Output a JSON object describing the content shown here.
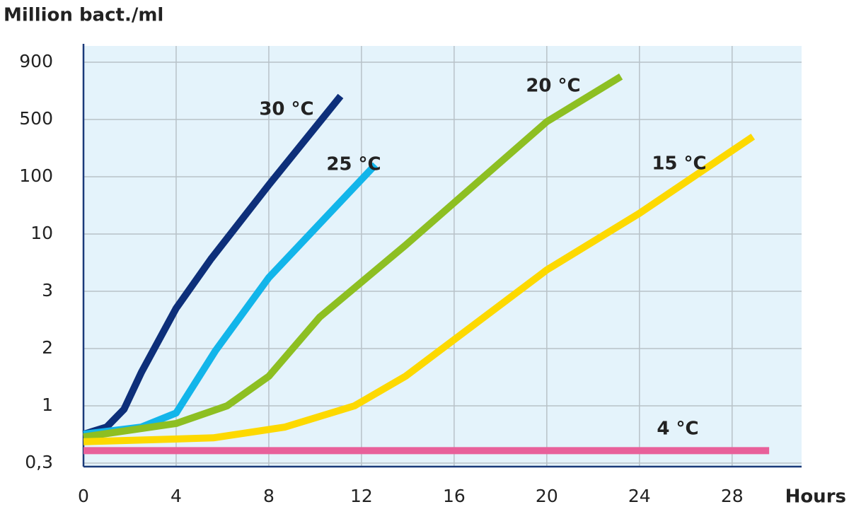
{
  "chart_data": {
    "type": "line",
    "y_label": "Million bact./ml",
    "x_label": "Hours",
    "xlim": [
      0,
      31
    ],
    "xticks": [
      0,
      4,
      8,
      12,
      16,
      20,
      24,
      28
    ],
    "ylim": [
      0.3,
      900
    ],
    "yticks": [
      {
        "value": 0.3,
        "label": "0,3"
      },
      1,
      2,
      3,
      10,
      100,
      500,
      900
    ],
    "grid": true,
    "series": [
      {
        "name": "30 °C",
        "color": "#0d2f7a",
        "x": [
          0,
          1,
          1.75,
          2.5,
          4,
          5.5,
          8,
          11.1
        ],
        "values": [
          0.55,
          0.64,
          0.93,
          1.5,
          2.66,
          5.9,
          72,
          636
        ]
      },
      {
        "name": "25 °C",
        "color": "#12b5ea",
        "x": [
          0,
          2.5,
          4,
          5.7,
          8,
          12.6
        ],
        "values": [
          0.55,
          0.64,
          0.86,
          1.95,
          4,
          140
        ]
      },
      {
        "name": "20 °C",
        "color": "#8dbf22",
        "x": [
          0,
          4,
          6.2,
          8,
          10.2,
          13.9,
          20,
          23.2
        ],
        "values": [
          0.52,
          0.69,
          1,
          1.43,
          2.5,
          7.9,
          470,
          777
        ]
      },
      {
        "name": "15 °C",
        "color": "#fdd900",
        "x": [
          0,
          5.6,
          8.7,
          11.7,
          13.9,
          20,
          24,
          28.9
        ],
        "values": [
          0.47,
          0.51,
          0.64,
          1,
          1.43,
          4.7,
          23,
          309
        ]
      },
      {
        "name": "4 °C",
        "color": "#e8609a",
        "x": [
          0,
          29.6
        ],
        "values": [
          0.39,
          0.39
        ]
      }
    ]
  }
}
